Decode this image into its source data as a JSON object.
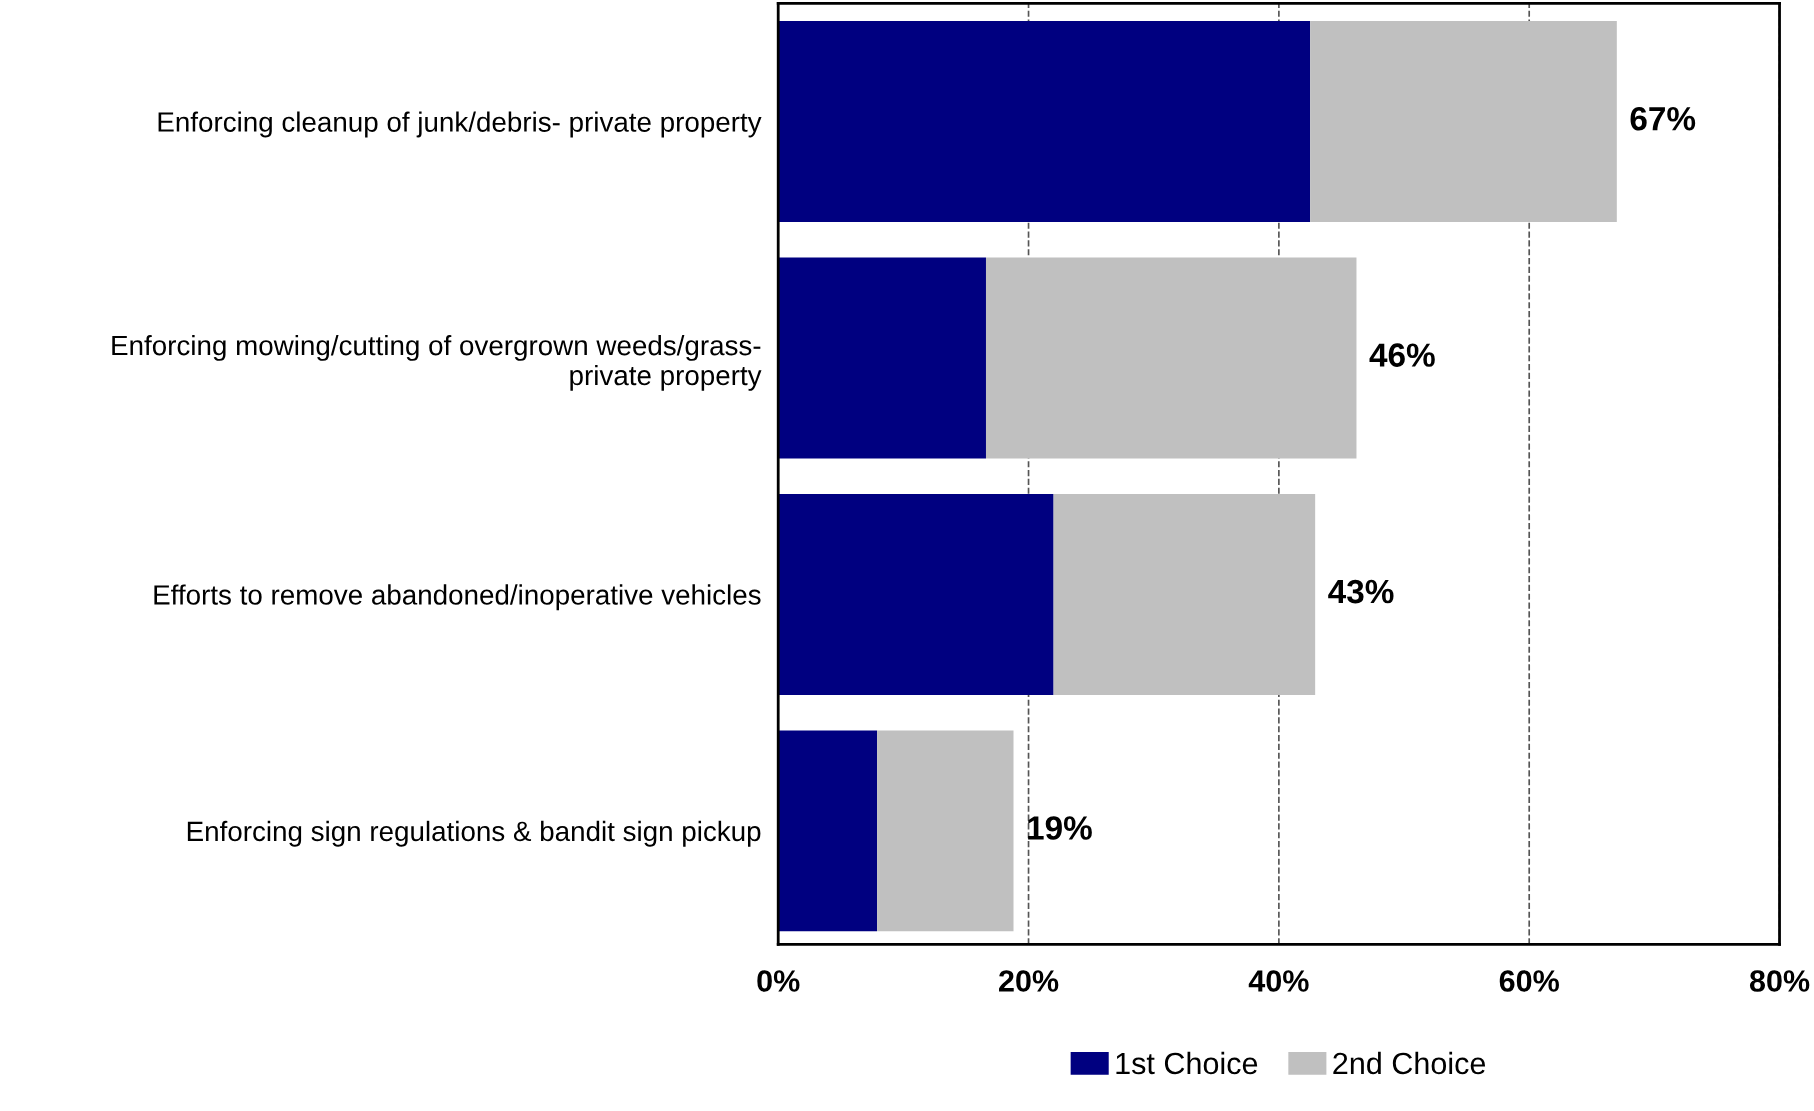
{
  "chart_data": {
    "type": "bar",
    "orientation": "horizontal",
    "stacked": true,
    "categories": [
      "Enforcing cleanup of junk/debris- private property",
      "Enforcing mowing/cutting of overgrown weeds/grass-\nprivate property",
      "Efforts to remove abandoned/inoperative vehicles",
      "Enforcing sign regulations & bandit sign pickup"
    ],
    "series": [
      {
        "name": "1st Choice",
        "color": "#000080",
        "values": [
          42.5,
          16.6,
          22.0,
          7.9
        ]
      },
      {
        "name": "2nd Choice",
        "color": "#c0c0c0",
        "values": [
          24.5,
          29.6,
          20.9,
          10.9
        ]
      }
    ],
    "totals": [
      "67%",
      "46%",
      "43%",
      "19%"
    ],
    "xlim": [
      0,
      80
    ],
    "xticks": [
      {
        "value": 0,
        "label": "0%"
      },
      {
        "value": 20,
        "label": "20%"
      },
      {
        "value": 40,
        "label": "40%"
      },
      {
        "value": 60,
        "label": "60%"
      },
      {
        "value": 80,
        "label": "80%"
      }
    ],
    "grid": "x",
    "legend": "bottom"
  }
}
